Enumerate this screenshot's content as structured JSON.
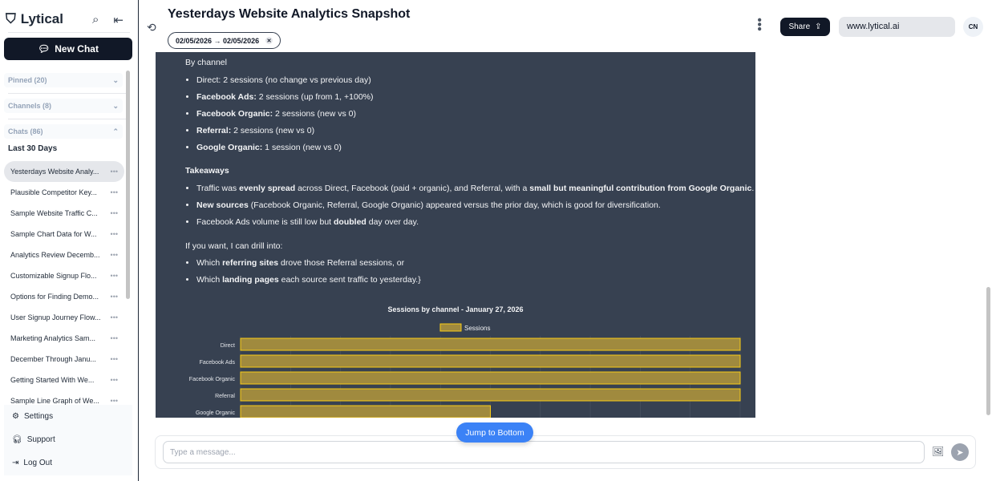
{
  "sidebar": {
    "brand": "Lytical",
    "new_chat": "New Chat",
    "sections": [
      {
        "label": "Pinned (20)",
        "expanded": false
      },
      {
        "label": "Channels (8)",
        "expanded": false
      },
      {
        "label": "Chats (86)",
        "expanded": true
      }
    ],
    "group_label": "Last 30 Days",
    "chats": [
      "Yesterdays Website Analy...",
      "Plausible Competitor Key...",
      "Sample Website Traffic C...",
      "Sample Chart Data for W...",
      "Analytics Review Decemb...",
      "Customizable Signup Flo...",
      "Options for Finding Demo...",
      "User Signup Journey Flow...",
      "Marketing Analytics Sam...",
      "December Through Janu...",
      "Getting Started With We...",
      "Sample Line Graph of We..."
    ],
    "active_chat": 0,
    "footer": [
      {
        "label": "Settings",
        "icon": "gear-icon"
      },
      {
        "label": "Support",
        "icon": "headset-icon"
      },
      {
        "label": "Log Out",
        "icon": "logout-icon"
      }
    ]
  },
  "header": {
    "title": "Yesterdays Website Analytics Snapshot",
    "date_range": "02/05/2026 → 02/05/2026",
    "share": "Share",
    "url": "www.lytical.ai",
    "avatar": "CN"
  },
  "message": {
    "by_channel": "By channel",
    "channels": [
      [
        {
          "t": "Direct: 2 sessions (no change vs previous day)"
        }
      ],
      [
        {
          "t": "Facebook Ads:",
          "b": 1
        },
        {
          "t": " 2 sessions (up from 1, +100%)"
        }
      ],
      [
        {
          "t": "Facebook Organic:",
          "b": 1
        },
        {
          "t": " 2 sessions (new vs 0)"
        }
      ],
      [
        {
          "t": "Referral:",
          "b": 1
        },
        {
          "t": " 2 sessions (new vs 0)"
        }
      ],
      [
        {
          "t": "Google Organic:",
          "b": 1
        },
        {
          "t": " 1 session (new vs 0)"
        }
      ]
    ],
    "takeaways_title": "Takeaways",
    "takeaways": [
      [
        {
          "t": "Traffic was "
        },
        {
          "t": "evenly spread",
          "b": 1
        },
        {
          "t": " across Direct, Facebook (paid + organic), and Referral, with a "
        },
        {
          "t": "small but meaningful contribution from Google Organic",
          "b": 1
        },
        {
          "t": "."
        }
      ],
      [
        {
          "t": "New sources",
          "b": 1
        },
        {
          "t": " (Facebook Organic, Referral, Google Organic) appeared versus the prior day, which is good for diversification."
        }
      ],
      [
        {
          "t": "Facebook Ads volume is still low but "
        },
        {
          "t": "doubled",
          "b": 1
        },
        {
          "t": " day over day."
        }
      ]
    ],
    "drill_intro": "If you want, I can drill into:",
    "drill": [
      [
        {
          "t": "Which "
        },
        {
          "t": "referring sites",
          "b": 1
        },
        {
          "t": " drove those Referral sessions, or"
        }
      ],
      [
        {
          "t": "Which "
        },
        {
          "t": "landing pages",
          "b": 1
        },
        {
          "t": " each source sent traffic to yesterday.}"
        }
      ]
    ]
  },
  "chart_data": {
    "type": "bar",
    "orientation": "horizontal",
    "title": "Sessions by channel - January 27, 2026",
    "categories": [
      "Direct",
      "Facebook Ads",
      "Facebook Organic",
      "Referral",
      "Google Organic"
    ],
    "series": [
      {
        "name": "Sessions",
        "values": [
          2,
          2,
          2,
          2,
          1
        ]
      }
    ],
    "xlim": [
      0,
      2
    ],
    "grid": true,
    "legend": "top",
    "bar_color": "#a08a3e",
    "bar_border": "#facc15"
  },
  "composer": {
    "jump": "Jump to Bottom",
    "placeholder": "Type a message..."
  }
}
